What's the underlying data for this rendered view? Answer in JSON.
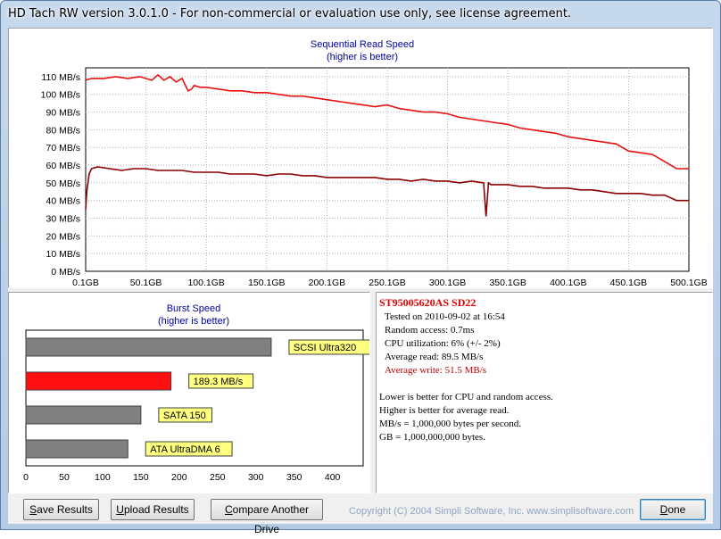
{
  "window": {
    "title": "HD Tach RW version 3.0.1.0  - For non-commercial or evaluation use only, see license agreement."
  },
  "seq_chart": {
    "title": "Sequential Read Speed",
    "subtitle": "(higher is better)"
  },
  "burst_chart": {
    "title": "Burst Speed",
    "subtitle": "(higher is better)"
  },
  "chart_data": [
    {
      "type": "line",
      "title": "Sequential Read Speed",
      "subtitle": "(higher is better)",
      "xlabel": "",
      "ylabel": "",
      "xlim": [
        0.1,
        500.1
      ],
      "ylim": [
        0,
        115
      ],
      "x_ticks": [
        "0.1GB",
        "50.1GB",
        "100.1GB",
        "150.1GB",
        "200.1GB",
        "250.1GB",
        "300.1GB",
        "350.1GB",
        "400.1GB",
        "450.1GB",
        "500.1GB"
      ],
      "x_tick_values": [
        0.1,
        50.1,
        100.1,
        150.1,
        200.1,
        250.1,
        300.1,
        350.1,
        400.1,
        450.1,
        500.1
      ],
      "y_ticks": [
        "0 MB/s",
        "10 MB/s",
        "20 MB/s",
        "30 MB/s",
        "40 MB/s",
        "50 MB/s",
        "60 MB/s",
        "70 MB/s",
        "80 MB/s",
        "90 MB/s",
        "100 MB/s",
        "110 MB/s"
      ],
      "y_tick_values": [
        0,
        10,
        20,
        30,
        40,
        50,
        60,
        70,
        80,
        90,
        100,
        110
      ],
      "grid": true,
      "series": [
        {
          "color": "#e81010",
          "x": [
            0.1,
            5,
            15,
            25,
            35,
            45,
            55,
            60,
            65,
            70,
            75,
            80,
            85,
            88,
            90,
            95,
            100,
            110,
            120,
            130,
            140,
            150,
            160,
            170,
            180,
            190,
            200,
            210,
            220,
            230,
            240,
            250,
            260,
            270,
            280,
            290,
            300,
            310,
            320,
            330,
            340,
            350,
            360,
            370,
            380,
            390,
            400,
            410,
            420,
            430,
            440,
            450,
            460,
            470,
            480,
            490,
            500.1
          ],
          "y": [
            108,
            109,
            109,
            110,
            109,
            110,
            108,
            111,
            108,
            110,
            107,
            109,
            102,
            103,
            105,
            104,
            104,
            103,
            102,
            102,
            101,
            101,
            100,
            99,
            99,
            98,
            97,
            96,
            95,
            94,
            93,
            94,
            92,
            91,
            90,
            90,
            89,
            87,
            86,
            85,
            84,
            83,
            81,
            80,
            79,
            78,
            76,
            75,
            74,
            73,
            72,
            68,
            67,
            66,
            62,
            58,
            58
          ]
        },
        {
          "color": "#8b0000",
          "x": [
            0.1,
            1,
            3,
            5,
            10,
            20,
            30,
            40,
            50,
            60,
            70,
            80,
            90,
            100,
            110,
            120,
            130,
            140,
            150,
            160,
            170,
            180,
            190,
            200,
            210,
            220,
            230,
            240,
            250,
            260,
            270,
            280,
            290,
            300,
            310,
            320,
            330,
            332,
            334,
            336,
            340,
            350,
            360,
            370,
            380,
            390,
            400,
            410,
            420,
            430,
            440,
            450,
            460,
            470,
            480,
            490,
            500.1
          ],
          "y": [
            35,
            45,
            55,
            58,
            59,
            58,
            57,
            58,
            58,
            57,
            57,
            57,
            56,
            56,
            56,
            55,
            55,
            55,
            54,
            55,
            55,
            54,
            54,
            53,
            53,
            53,
            53,
            53,
            52,
            52,
            51,
            52,
            51,
            51,
            50,
            51,
            50,
            31,
            50,
            49,
            49,
            49,
            48,
            48,
            47,
            47,
            47,
            46,
            46,
            45,
            44,
            44,
            44,
            43,
            43,
            40,
            40
          ]
        }
      ]
    },
    {
      "type": "bar",
      "title": "Burst Speed",
      "subtitle": "(higher is better)",
      "orientation": "horizontal",
      "xlim": [
        0,
        440
      ],
      "x_ticks": [
        "0",
        "50",
        "100",
        "150",
        "200",
        "250",
        "300",
        "350",
        "400"
      ],
      "x_tick_values": [
        0,
        50,
        100,
        150,
        200,
        250,
        300,
        350,
        400
      ],
      "categories": [
        "SCSI Ultra320",
        "189.3 MB/s",
        "SATA 150",
        "ATA UltraDMA 6"
      ],
      "values": [
        320,
        189.3,
        150,
        133
      ],
      "colors": [
        "#808080",
        "#ff1010",
        "#808080",
        "#808080"
      ]
    }
  ],
  "info": {
    "drive": "ST95005620AS SD22",
    "tested": "Tested on 2010-09-02 at 16:54",
    "random_access": "Random access: 0.7ms",
    "cpu": "CPU utilization: 6% (+/- 2%)",
    "avg_read": "Average read: 89.5 MB/s",
    "avg_write": "Average write: 51.5 MB/s",
    "note1": "Lower is better for CPU and random access.",
    "note2": "Higher is better for average read.",
    "note3": "MB/s = 1,000,000 bytes per second.",
    "note4": "GB = 1,000,000,000 bytes."
  },
  "buttons": {
    "save_pre": "",
    "save_u": "S",
    "save_post": "ave Results",
    "upload_pre": "",
    "upload_u": "U",
    "upload_post": "pload Results",
    "compare_pre": "",
    "compare_u": "C",
    "compare_post": "ompare Another Drive",
    "done_pre": "",
    "done_u": "D",
    "done_post": "one"
  },
  "footer": {
    "copyright": "Copyright (C) 2004 Simpli Software, Inc. www.simplisoftware.com"
  },
  "colors": {
    "accent_title": "#0000a0",
    "avg_write_red": "#c00000",
    "drive_red": "#e00000"
  }
}
